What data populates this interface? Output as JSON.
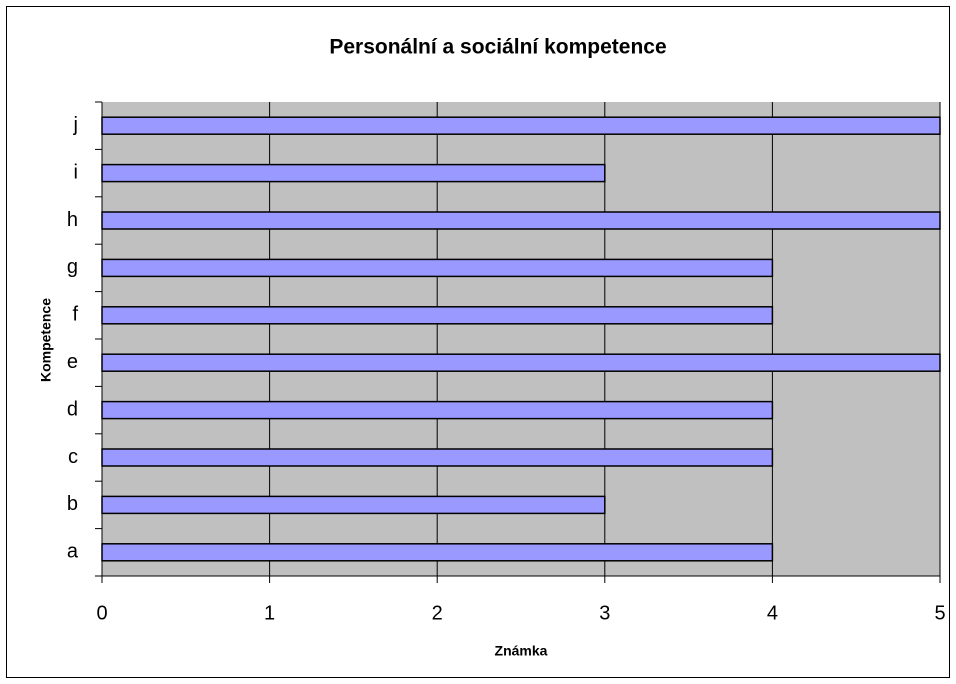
{
  "chart_data": {
    "type": "bar",
    "orientation": "horizontal",
    "title": "Personální a sociální kompetence",
    "x_label": "Známka",
    "y_label": "Kompetence",
    "categories": [
      "a",
      "b",
      "c",
      "d",
      "e",
      "f",
      "g",
      "h",
      "i",
      "j"
    ],
    "values": [
      4,
      3,
      4,
      4,
      5,
      4,
      4,
      5,
      3,
      5
    ],
    "color": "#9999ff",
    "plot_background": "#c0c0c0",
    "xlim": [
      0,
      5
    ],
    "xticks": [
      0,
      1,
      2,
      3,
      4,
      5
    ],
    "grid": true
  }
}
